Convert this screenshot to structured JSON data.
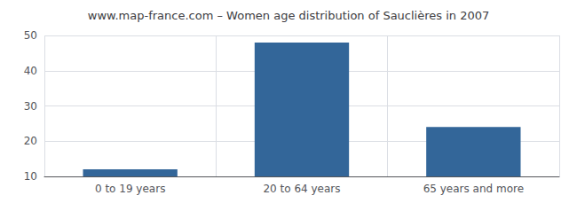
{
  "chart_data": {
    "type": "bar",
    "title": "www.map-france.com – Women age distribution of Sauclières in 2007",
    "categories": [
      "0 to 19 years",
      "20 to 64 years",
      "65 years and more"
    ],
    "values": [
      12,
      48,
      24
    ],
    "color": "#336699",
    "ylim": [
      10,
      50
    ],
    "yticks": [
      10,
      20,
      30,
      40,
      50
    ],
    "grid": true
  }
}
